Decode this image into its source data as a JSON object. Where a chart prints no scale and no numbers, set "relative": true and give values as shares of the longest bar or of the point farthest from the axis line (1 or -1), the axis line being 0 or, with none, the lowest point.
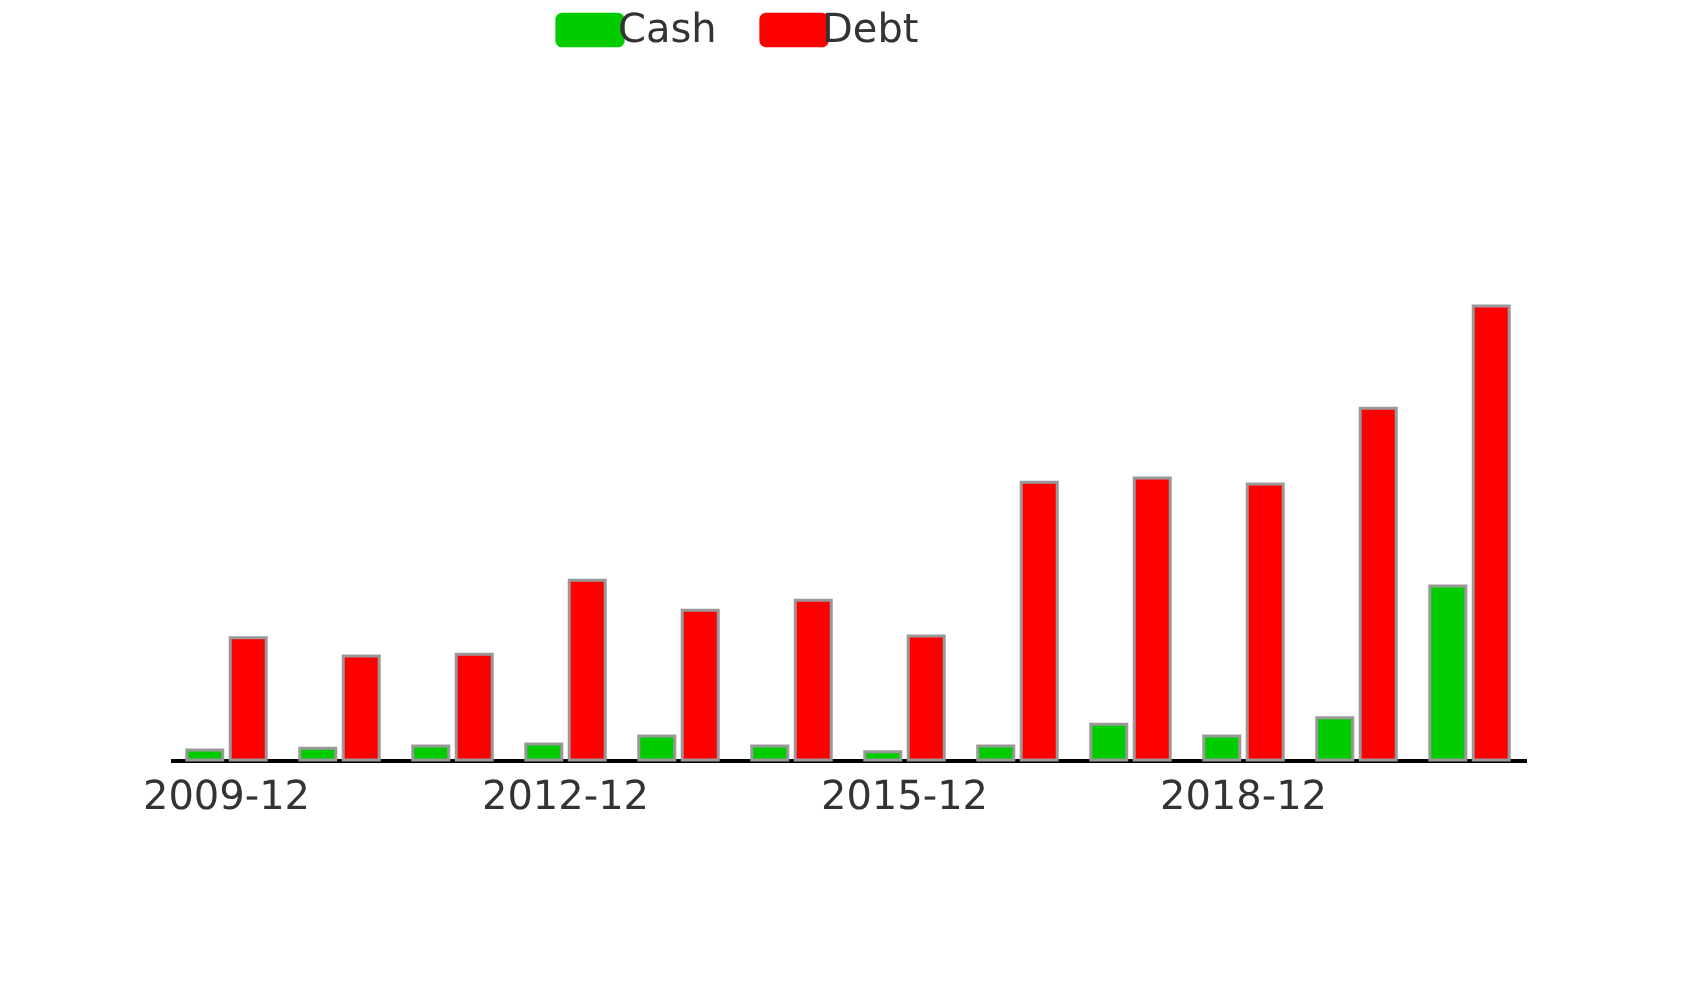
{
  "chart_data": {
    "type": "bar",
    "relative": true,
    "legend": "top",
    "grid": false,
    "categories": [
      "2009-12",
      null,
      null,
      "2012-12",
      null,
      null,
      "2015-12",
      null,
      null,
      "2018-12",
      null,
      null
    ],
    "series": [
      {
        "name": "Cash",
        "color": "#00cc00",
        "values": [
          0.022,
          0.026,
          0.031,
          0.035,
          0.053,
          0.031,
          0.018,
          0.031,
          0.079,
          0.053,
          0.093,
          0.383
        ]
      },
      {
        "name": "Debt",
        "color": "#ff0000",
        "values": [
          0.269,
          0.229,
          0.233,
          0.396,
          0.33,
          0.352,
          0.273,
          0.612,
          0.621,
          0.608,
          0.775,
          1.0
        ]
      }
    ]
  }
}
